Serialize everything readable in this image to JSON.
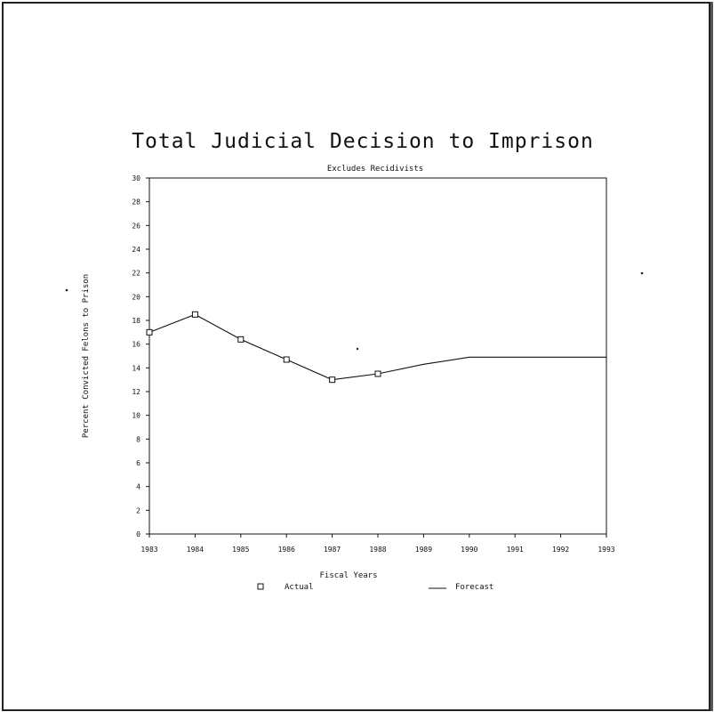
{
  "chart_data": {
    "type": "line",
    "title": "Total Judicial Decision to Imprison",
    "subtitle": "Excludes Recidivists",
    "xlabel": "Fiscal Years",
    "ylabel": "Percent Convicted Felons to Prison",
    "categories": [
      "1983",
      "1984",
      "1985",
      "1986",
      "1987",
      "1988",
      "1989",
      "1990",
      "1991",
      "1992",
      "1993"
    ],
    "ylim": [
      0,
      30
    ],
    "yticks": [
      "0",
      "2",
      "4",
      "6",
      "8",
      "10",
      "12",
      "14",
      "16",
      "18",
      "20",
      "22",
      "24",
      "26",
      "28",
      "30"
    ],
    "grid": false,
    "legend_position": "bottom",
    "series": [
      {
        "name": "Actual",
        "marker": "square",
        "x": [
          "1983",
          "1984",
          "1985",
          "1986",
          "1987",
          "1988"
        ],
        "values": [
          17.0,
          18.5,
          16.4,
          14.7,
          13.0,
          13.5
        ]
      },
      {
        "name": "Forecast",
        "marker": "none",
        "x": [
          "1983",
          "1984",
          "1985",
          "1986",
          "1987",
          "1988",
          "1989",
          "1990",
          "1991",
          "1992",
          "1993"
        ],
        "values": [
          17.0,
          18.5,
          16.4,
          14.7,
          13.0,
          13.5,
          14.3,
          14.9,
          14.9,
          14.9,
          14.9
        ]
      }
    ]
  }
}
